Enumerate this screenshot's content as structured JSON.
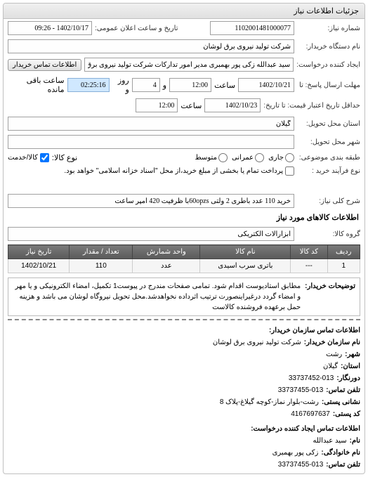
{
  "panel_title": "جزئیات اطلاعات نیاز",
  "fields": {
    "request_no_label": "شماره نیاز:",
    "request_no": "1102001481000077",
    "announce_label": "تاریخ و ساعت اعلان عمومی:",
    "announce_value": "1402/10/17 - 09:26",
    "buyer_org_label": "نام دستگاه خریدار:",
    "buyer_org": "شرکت تولید نیروی برق لوشان",
    "creator_label": "ایجاد کننده درخواست:",
    "creator": "سید عبدالله زکی پور بهمبری مدیر امور تدارکات شرکت تولید نیروی برق لوشان",
    "contact_btn": "اطلاعات تماس خریدار",
    "deadline_recv_label": "مهلت ارسال پاسخ: تا",
    "date1": "1402/10/21",
    "time_label": "ساعت",
    "time1": "12:00",
    "day_label": "و",
    "days": "4",
    "day_suffix": "روز و",
    "timer": "02:25:16",
    "timer_suffix": "ساعت باقی مانده",
    "deadline_offer_label": "حداقل تاریخ اعتبار قیمت: تا تاریخ:",
    "date2": "1402/10/23",
    "time2": "12:00",
    "delivery_province_label": "استان محل تحویل:",
    "province": "گیلان",
    "delivery_city_label": "شهر محل تحویل:",
    "budget_label": "طبقه بندی موضوعی:",
    "budget_opts": {
      "current": "جاری",
      "capital": "عمرانی",
      "mixed": "متوسط"
    },
    "item_type_label": "نوع کالا:",
    "item_type": "کالا/خدمت",
    "process_label": "نوع فرآیند خرید :",
    "process_text": "پرداخت تمام یا بخشی از مبلغ خرید،از محل \"اسناد خزانه اسلامی\" خواهد بود.",
    "desc_label": "شرح کلی نیاز:",
    "desc": "خرید 110 عدد باطری 2 ولتی 60opzsبا ظرفیت 420 آمپر ساعت"
  },
  "items_section_title": "اطلاعات کالاهای مورد نیاز",
  "item_group_label": "گروه کالا:",
  "item_group": "ابزارآلات الکتریکی",
  "table": {
    "headers": [
      "ردیف",
      "کد کالا",
      "نام کالا",
      "واحد شمارش",
      "تعداد / مقدار",
      "تاریخ نیاز"
    ],
    "rows": [
      [
        "1",
        "---",
        "باتری سرب اسیدی",
        "عدد",
        "110",
        "1402/10/21"
      ]
    ]
  },
  "notes": {
    "label": "توضیحات خریدار:",
    "text": "مطابق استادیوست اقدام شود. تمامی صفحات مندرج در پیوست1 تکمیل، امضاء الکترونیکی و یا مهر و امضاء گردد درغیراینصورت ترتیب اثرداده نخواهدشد.محل تحویل نیروگاه لوشان می باشد و هزینه حمل برعهده فروشنده کالاست"
  },
  "contact": {
    "section1_title": "اطلاعات تماس سازمان خریدار:",
    "org_label": "نام سازمان خریدار:",
    "org": "شرکت تولید نیروی برق لوشان",
    "city_label": "شهر:",
    "city": "رشت",
    "province_label": "استان:",
    "province": "گیلان",
    "fax_label": "دورنگار:",
    "fax": "33737452-013",
    "phone_label": "تلفن تماس:",
    "phone": "33737455-013",
    "postal_label": "نشانی پستی:",
    "postal": "رشت-بلوار نماز-کوچه گیلاغ-پلاک 8",
    "zip_label": "کد پستی:",
    "zip": "4167697637",
    "section2_title": "اطلاعات تماس ایجاد کننده درخواست:",
    "name_label": "نام:",
    "name": "سید عبدالله",
    "lname_label": "نام خانوادگی:",
    "lname": "زکی پور بهمبری",
    "phone2_label": "تلفن تماس:",
    "phone2": "33737455-013"
  }
}
